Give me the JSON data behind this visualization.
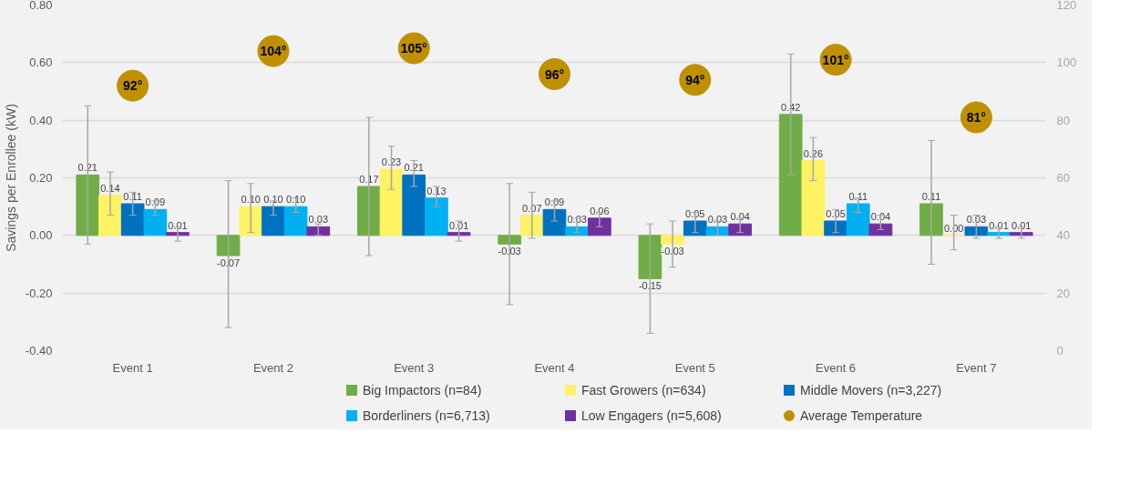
{
  "chart_data": {
    "type": "bar",
    "ylabel": "Savings per Enrollee (kW)",
    "categories": [
      "Event 1",
      "Event 2",
      "Event 3",
      "Event 4",
      "Event 5",
      "Event 6",
      "Event 7"
    ],
    "ylim": [
      -0.4,
      0.8
    ],
    "yticks": [
      {
        "value": -0.4,
        "label": "-0.40"
      },
      {
        "value": -0.2,
        "label": "-0.20"
      },
      {
        "value": 0,
        "label": "0.00"
      },
      {
        "value": 0.2,
        "label": "0.20"
      },
      {
        "value": 0.4,
        "label": "0.40"
      },
      {
        "value": 0.6,
        "label": "0.60"
      },
      {
        "value": 0.8,
        "label": "0.80"
      }
    ],
    "y2lim": [
      0,
      120
    ],
    "y2ticks": [
      0,
      20,
      40,
      60,
      80,
      100,
      120
    ],
    "grid": "y",
    "legend": "bottom",
    "series": [
      {
        "name": "Big Impactors (n=84)",
        "color": "#70ad47",
        "values": [
          0.21,
          -0.07,
          0.17,
          -0.03,
          -0.15,
          0.42,
          0.11
        ],
        "value_labels": [
          "0.21",
          "-0.07",
          "0.17",
          "-0.03",
          "-0.15",
          "0.42",
          "0.11"
        ],
        "errors": [
          [
            -0.03,
            0.45
          ],
          [
            -0.32,
            0.19
          ],
          [
            -0.07,
            0.41
          ],
          [
            -0.24,
            0.18
          ],
          [
            -0.34,
            0.04
          ],
          [
            0.21,
            0.63
          ],
          [
            -0.1,
            0.33
          ]
        ]
      },
      {
        "name": "Fast Growers (n=634)",
        "color": "#fff263",
        "values": [
          0.14,
          0.1,
          0.23,
          0.07,
          -0.03,
          0.26,
          0.0
        ],
        "value_labels": [
          "0.14",
          "0.10",
          "0.23",
          "0.07",
          "-0.03",
          "0.26",
          "0.00"
        ],
        "errors": [
          [
            0.07,
            0.22
          ],
          [
            0.01,
            0.18
          ],
          [
            0.16,
            0.31
          ],
          [
            -0.01,
            0.15
          ],
          [
            -0.11,
            0.05
          ],
          [
            0.19,
            0.34
          ],
          [
            -0.05,
            0.07
          ]
        ]
      },
      {
        "name": "Middle Movers (n=3,227)",
        "color": "#0070c0",
        "values": [
          0.11,
          0.1,
          0.21,
          0.09,
          0.05,
          0.05,
          0.03
        ],
        "value_labels": [
          "0.11",
          "0.10",
          "0.21",
          "0.09",
          "0.05",
          "0.05",
          "0.03"
        ],
        "errors": [
          [
            0.07,
            0.15
          ],
          [
            0.07,
            0.12
          ],
          [
            0.17,
            0.26
          ],
          [
            0.05,
            0.12
          ],
          [
            0.01,
            0.08
          ],
          [
            0.01,
            0.09
          ],
          [
            -0.01,
            0.07
          ]
        ]
      },
      {
        "name": "Borderliners (n=6,713)",
        "color": "#00b0f0",
        "values": [
          0.09,
          0.1,
          0.13,
          0.03,
          0.03,
          0.11,
          0.01
        ],
        "value_labels": [
          "0.09",
          "0.10",
          "0.13",
          "0.03",
          "0.03",
          "0.11",
          "0.01"
        ],
        "errors": [
          [
            0.07,
            0.12
          ],
          [
            0.08,
            0.13
          ],
          [
            0.1,
            0.17
          ],
          [
            0.01,
            0.06
          ],
          [
            0.0,
            0.05
          ],
          [
            0.08,
            0.13
          ],
          [
            -0.01,
            0.03
          ]
        ]
      },
      {
        "name": "Low Engagers (n=5,608)",
        "color": "#7030a0",
        "values": [
          0.01,
          0.03,
          0.01,
          0.06,
          0.04,
          0.04,
          0.01
        ],
        "value_labels": [
          "0.01",
          "0.03",
          "0.01",
          "0.06",
          "0.04",
          "0.04",
          "0.01"
        ],
        "errors": [
          [
            -0.02,
            0.03
          ],
          [
            0.0,
            0.04
          ],
          [
            -0.02,
            0.05
          ],
          [
            0.03,
            0.08
          ],
          [
            0.01,
            0.06
          ],
          [
            0.02,
            0.07
          ],
          [
            -0.01,
            0.03
          ]
        ]
      },
      {
        "name": "Average Temperature",
        "type": "scatter",
        "axis": "y2",
        "marker": "circle",
        "color": "#bf9000",
        "values": [
          92,
          104,
          105,
          96,
          94,
          101,
          81
        ],
        "value_labels": [
          "92°",
          "104°",
          "105°",
          "96°",
          "94°",
          "101°",
          "81°"
        ]
      }
    ]
  }
}
